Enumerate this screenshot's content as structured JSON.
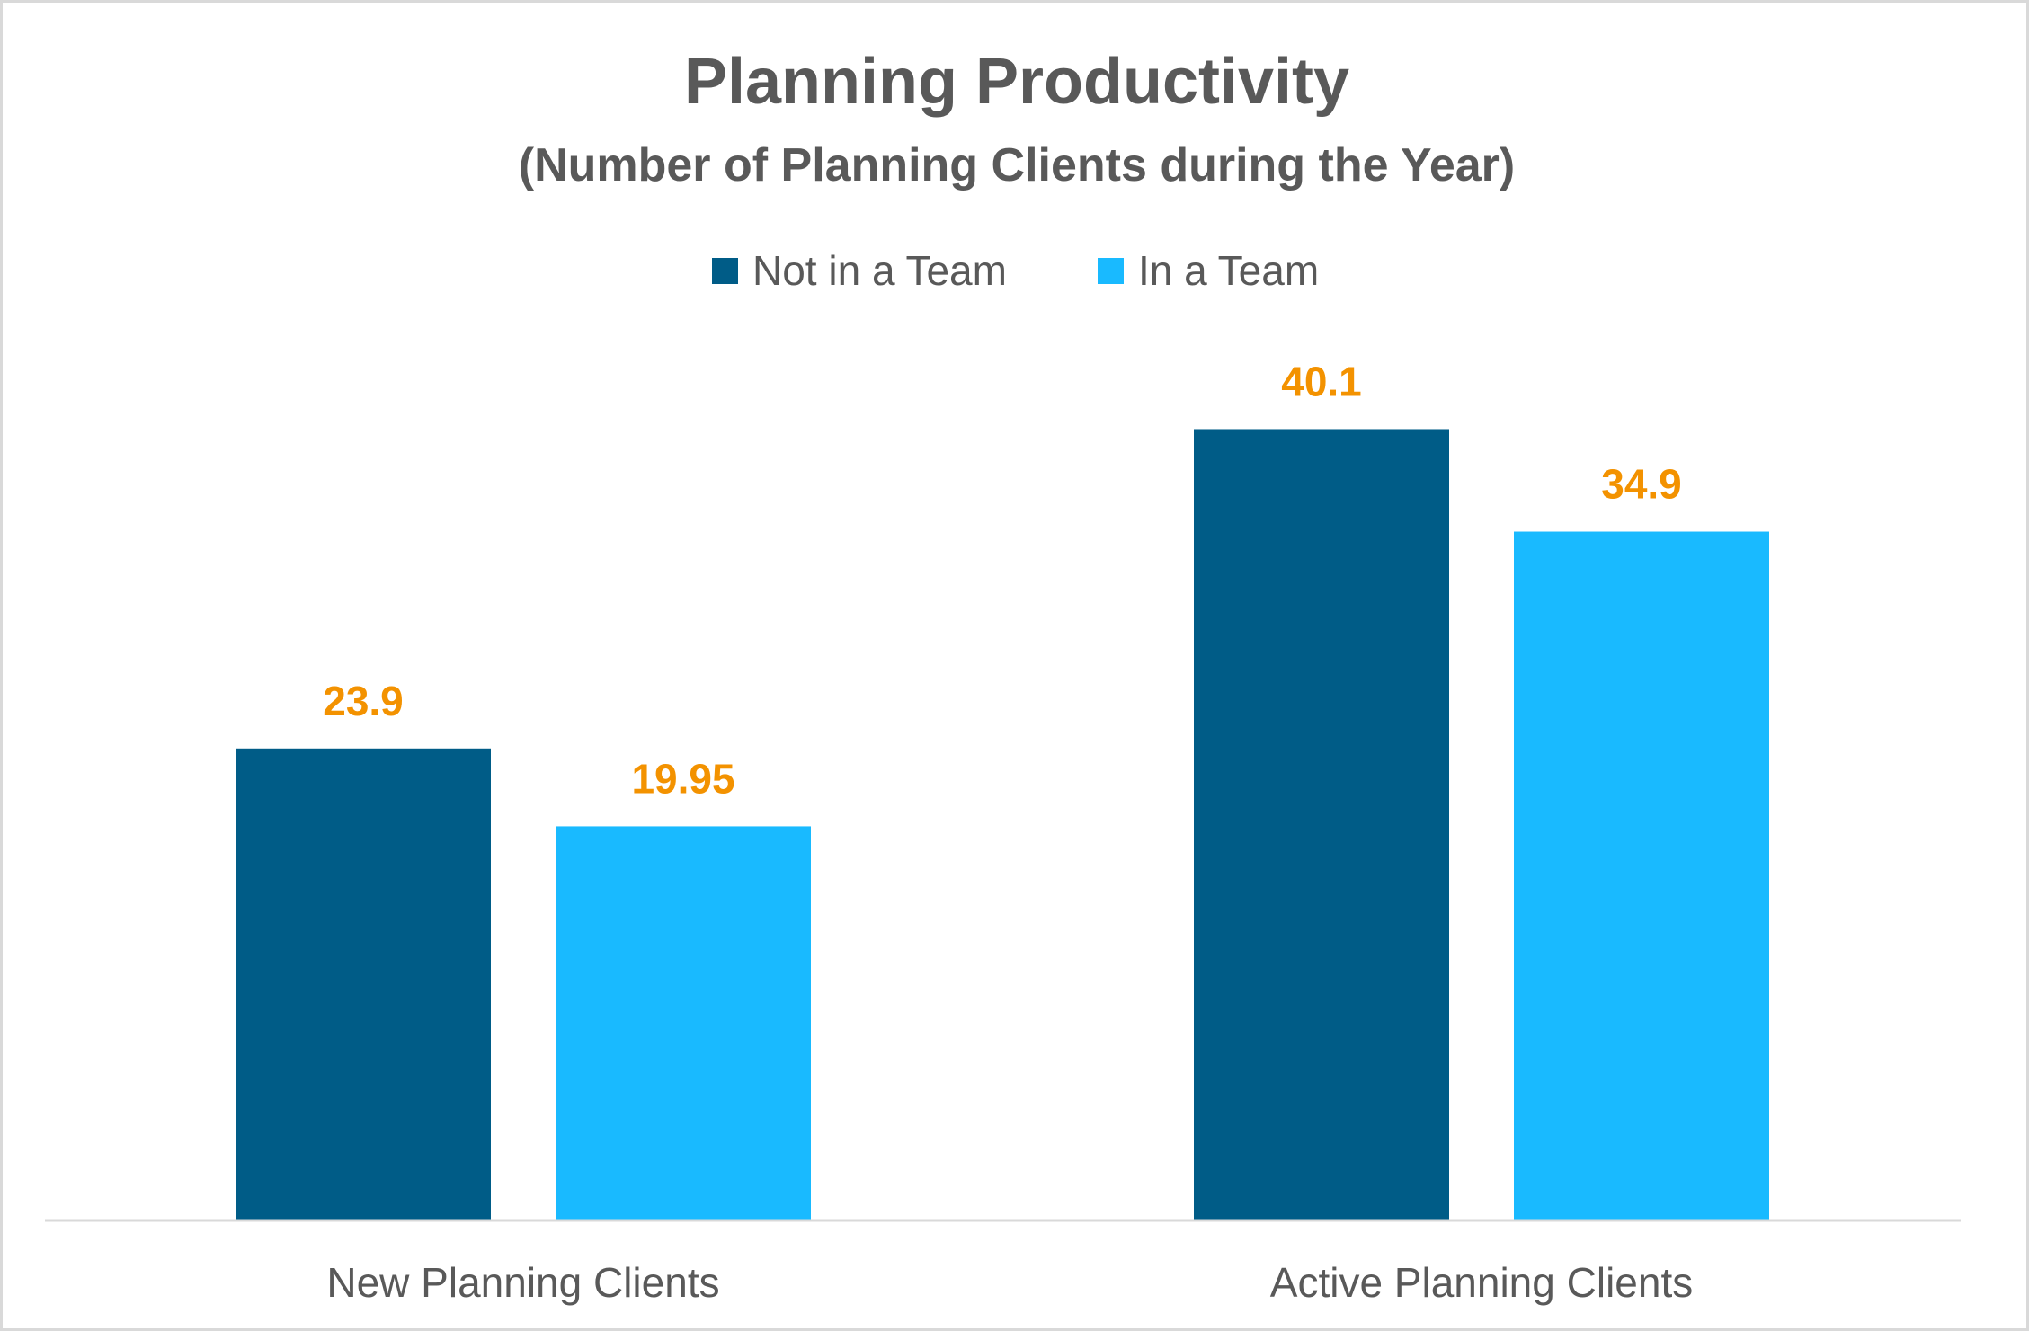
{
  "chart_data": {
    "type": "bar",
    "title": "Planning Productivity",
    "subtitle": "(Number of Planning Clients during the Year)",
    "categories": [
      "New Planning Clients",
      "Active Planning Clients"
    ],
    "series": [
      {
        "name": "Not in a Team",
        "color": "#005C87",
        "values": [
          23.9,
          40.1
        ],
        "labels": [
          "23.9",
          "40.1"
        ]
      },
      {
        "name": "In a Team",
        "color": "#19BAFF",
        "values": [
          19.95,
          34.9
        ],
        "labels": [
          "19.95",
          "34.9"
        ]
      }
    ],
    "xlabel": "",
    "ylabel": "",
    "ylim": [
      0,
      45
    ],
    "grid": false,
    "legend": "top",
    "label_color": "#F39200",
    "text_color": "#595959"
  }
}
